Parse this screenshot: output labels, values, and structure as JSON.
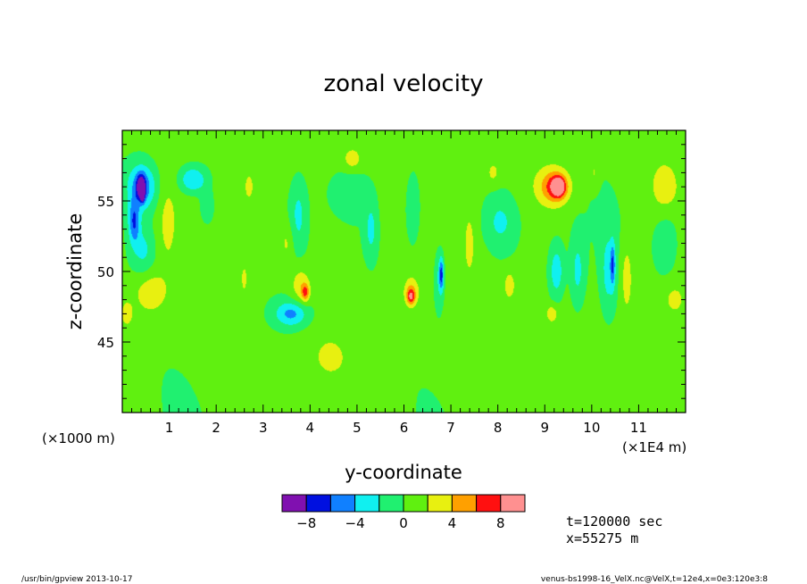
{
  "chart_data": {
    "type": "contour",
    "title": "zonal velocity",
    "xlabel": "y-coordinate",
    "ylabel": "z-coordinate",
    "x_unit_left": "(×1000 m)",
    "x_unit_right": "(×1E4 m)",
    "xlim": [
      0,
      120000
    ],
    "ylim": [
      40000,
      60000
    ],
    "x_ticks": [
      {
        "value": 10000,
        "label": "1"
      },
      {
        "value": 20000,
        "label": "2"
      },
      {
        "value": 30000,
        "label": "3"
      },
      {
        "value": 40000,
        "label": "4"
      },
      {
        "value": 50000,
        "label": "5"
      },
      {
        "value": 60000,
        "label": "6"
      },
      {
        "value": 70000,
        "label": "7"
      },
      {
        "value": 80000,
        "label": "8"
      },
      {
        "value": 90000,
        "label": "9"
      },
      {
        "value": 100000,
        "label": "10"
      },
      {
        "value": 110000,
        "label": "11"
      }
    ],
    "y_ticks": [
      {
        "value": 45000,
        "label": "45"
      },
      {
        "value": 50000,
        "label": "50"
      },
      {
        "value": 55000,
        "label": "55"
      }
    ],
    "colorbar": {
      "levels": [
        -10,
        -8,
        -6,
        -4,
        -2,
        0,
        2,
        4,
        6,
        8,
        10
      ],
      "colors": [
        "#8010b0",
        "#0010e0",
        "#1080ff",
        "#10f0f0",
        "#20f070",
        "#60f010",
        "#e8f010",
        "#ffa000",
        "#ff1010",
        "#ff9090"
      ],
      "tick_labels": [
        {
          "value": -8,
          "label": "−8"
        },
        {
          "value": -4,
          "label": "−4"
        },
        {
          "value": 0,
          "label": "0"
        },
        {
          "value": 4,
          "label": "4"
        },
        {
          "value": 8,
          "label": "8"
        }
      ]
    },
    "features": [
      {
        "y": 4200,
        "z": 56000,
        "ry": 3200,
        "rz": 1700,
        "v": -6
      },
      {
        "y": 2500,
        "z": 53500,
        "ry": 1200,
        "rz": 1500,
        "v": -6
      },
      {
        "y": 4000,
        "z": 56000,
        "ry": 900,
        "rz": 800,
        "v": -8
      },
      {
        "y": 4300,
        "z": 55500,
        "ry": 400,
        "rz": 500,
        "v": -9
      },
      {
        "y": 15000,
        "z": 56500,
        "ry": 3000,
        "rz": 1000,
        "v": -5
      },
      {
        "y": 18000,
        "z": 54500,
        "ry": 1500,
        "rz": 1200,
        "v": -3
      },
      {
        "y": 4500,
        "z": 51500,
        "ry": 2500,
        "rz": 1800,
        "v": -3
      },
      {
        "y": 6000,
        "z": 48500,
        "ry": 3500,
        "rz": 1500,
        "v": 3
      },
      {
        "y": 36000,
        "z": 47000,
        "ry": 3500,
        "rz": 900,
        "v": -5
      },
      {
        "y": 38000,
        "z": 49000,
        "ry": 2000,
        "rz": 1300,
        "v": 3
      },
      {
        "y": 39000,
        "z": 48500,
        "ry": 800,
        "rz": 600,
        "v": 5
      },
      {
        "y": 37500,
        "z": 54000,
        "ry": 1800,
        "rz": 2500,
        "v": -3
      },
      {
        "y": 35000,
        "z": 52000,
        "ry": 1500,
        "rz": 1500,
        "v": 2
      },
      {
        "y": 26000,
        "z": 49500,
        "ry": 800,
        "rz": 1200,
        "v": 2
      },
      {
        "y": 27000,
        "z": 56000,
        "ry": 900,
        "rz": 900,
        "v": 3
      },
      {
        "y": 48500,
        "z": 55500,
        "ry": 3500,
        "rz": 1200,
        "v": -2
      },
      {
        "y": 49000,
        "z": 58000,
        "ry": 2000,
        "rz": 800,
        "v": 3
      },
      {
        "y": 53000,
        "z": 53000,
        "ry": 1200,
        "rz": 1800,
        "v": -3
      },
      {
        "y": 62000,
        "z": 54500,
        "ry": 1500,
        "rz": 2500,
        "v": -3
      },
      {
        "y": 61500,
        "z": 48500,
        "ry": 1500,
        "rz": 1000,
        "v": 4
      },
      {
        "y": 61500,
        "z": 48200,
        "ry": 800,
        "rz": 500,
        "v": 5
      },
      {
        "y": 67500,
        "z": 49500,
        "ry": 1200,
        "rz": 2500,
        "v": -3
      },
      {
        "y": 68000,
        "z": 49800,
        "ry": 500,
        "rz": 1100,
        "v": -6
      },
      {
        "y": 74000,
        "z": 52000,
        "ry": 1000,
        "rz": 2000,
        "v": 2
      },
      {
        "y": 80500,
        "z": 53500,
        "ry": 3500,
        "rz": 2000,
        "v": -3
      },
      {
        "y": 79000,
        "z": 57000,
        "ry": 1500,
        "rz": 900,
        "v": 2
      },
      {
        "y": 82500,
        "z": 49000,
        "ry": 1200,
        "rz": 1000,
        "v": 3
      },
      {
        "y": 91500,
        "z": 56000,
        "ry": 4000,
        "rz": 1500,
        "v": 3
      },
      {
        "y": 92500,
        "z": 56000,
        "ry": 2500,
        "rz": 1000,
        "v": 5
      },
      {
        "y": 93000,
        "z": 56000,
        "ry": 1200,
        "rz": 600,
        "v": 7
      },
      {
        "y": 92500,
        "z": 50000,
        "ry": 1500,
        "rz": 1800,
        "v": -4
      },
      {
        "y": 91500,
        "z": 47000,
        "ry": 1200,
        "rz": 600,
        "v": 3
      },
      {
        "y": 97000,
        "z": 50000,
        "ry": 1500,
        "rz": 2500,
        "v": -3
      },
      {
        "y": 100500,
        "z": 57000,
        "ry": 1000,
        "rz": 1000,
        "v": 2
      },
      {
        "y": 103500,
        "z": 50000,
        "ry": 1500,
        "rz": 3000,
        "v": -3
      },
      {
        "y": 104500,
        "z": 50500,
        "ry": 500,
        "rz": 1500,
        "v": -5
      },
      {
        "y": 107500,
        "z": 49500,
        "ry": 1200,
        "rz": 2500,
        "v": 3
      },
      {
        "y": 115500,
        "z": 56000,
        "ry": 2500,
        "rz": 1500,
        "v": 3
      },
      {
        "y": 116000,
        "z": 52000,
        "ry": 3000,
        "rz": 2500,
        "v": -2
      },
      {
        "y": 117500,
        "z": 48000,
        "ry": 2000,
        "rz": 1000,
        "v": 2
      },
      {
        "y": 1000,
        "z": 47000,
        "ry": 1200,
        "rz": 800,
        "v": 3
      },
      {
        "y": 9500,
        "z": 53500,
        "ry": 1800,
        "rz": 3000,
        "v": 1.5
      },
      {
        "y": 44000,
        "z": 44000,
        "ry": 4000,
        "rz": 1500,
        "v": 1.5
      }
    ]
  },
  "info": {
    "time": "t=120000 sec",
    "position": "x=55275 m"
  },
  "footer": {
    "left": "/usr/bin/gpview  2013-10-17",
    "right": "venus-bs1998-16_VelX.nc@VelX,t=12e4,x=0e3:120e3:8"
  }
}
